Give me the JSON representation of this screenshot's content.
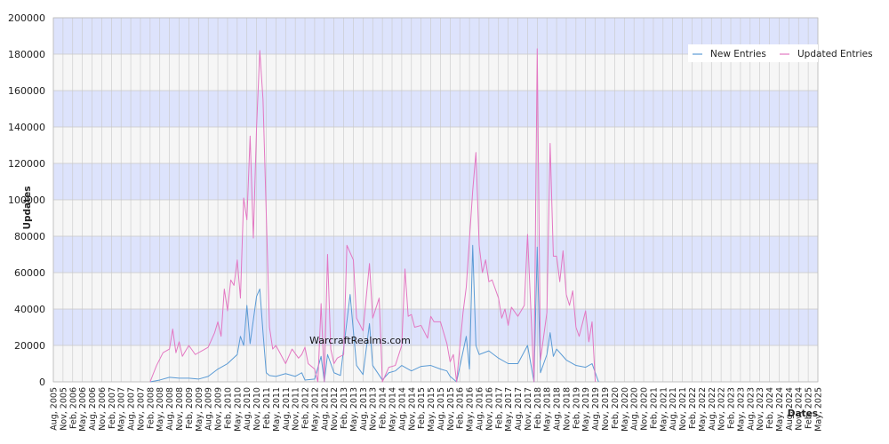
{
  "chart_data": {
    "type": "line",
    "ylabel": "Updates",
    "xlabel": "Dates",
    "watermark": "WarcraftRealms.com",
    "ylim": [
      0,
      200000
    ],
    "y_ticks": [
      "0",
      "20000",
      "40000",
      "60000",
      "80000",
      "100000",
      "120000",
      "140000",
      "160000",
      "180000",
      "200000"
    ],
    "grid": true,
    "legend_position": "top-right",
    "x": [
      "Aug, 2005",
      "Nov, 2005",
      "Feb, 2006",
      "May, 2006",
      "Aug, 2006",
      "Nov, 2006",
      "Feb, 2007",
      "May, 2007",
      "Aug, 2007",
      "Nov, 2007",
      "Feb, 2008",
      "May, 2008",
      "Aug, 2008",
      "Nov, 2008",
      "Feb, 2009",
      "May, 2009",
      "Aug, 2009",
      "Nov, 2009",
      "Feb, 2010",
      "May, 2010",
      "Aug, 2010",
      "Nov, 2010",
      "Feb, 2011",
      "May, 2011",
      "Aug, 2011",
      "Nov, 2011",
      "Feb, 2012",
      "May, 2012",
      "Aug, 2012",
      "Nov, 2012",
      "Feb, 2013",
      "May, 2013",
      "Aug, 2013",
      "Nov, 2013",
      "Feb, 2014",
      "May, 2014",
      "Aug, 2014",
      "Nov, 2014",
      "Feb, 2015",
      "May, 2015",
      "Aug, 2015",
      "Nov, 2015",
      "Feb, 2016",
      "May, 2016",
      "Aug, 2016",
      "Nov, 2016",
      "Feb, 2017",
      "May, 2017",
      "Aug, 2017",
      "Nov, 2017",
      "Feb, 2018",
      "May, 2018",
      "Aug, 2018",
      "Nov, 2018",
      "Feb, 2019",
      "May, 2019",
      "Aug, 2019",
      "Nov, 2019",
      "Feb, 2020",
      "May, 2020",
      "Aug, 2020",
      "Nov, 2020",
      "Feb, 2021",
      "May, 2021",
      "Aug, 2021",
      "Nov, 2021",
      "Feb, 2022",
      "May, 2022",
      "Aug, 2022",
      "Nov, 2022",
      "Feb, 2023",
      "May, 2023",
      "Aug, 2023",
      "Nov, 2023",
      "Feb, 2024",
      "May, 2024",
      "Aug, 2024",
      "Nov, 2024",
      "Feb, 2025",
      "May, 2025"
    ],
    "series": [
      {
        "name": "New Entries",
        "color": "#5b9bd5",
        "points": [
          [
            "Feb, 2008",
            0
          ],
          [
            "May, 2008",
            1000
          ],
          [
            "Aug, 2008",
            2500
          ],
          [
            "Nov, 2008",
            2000
          ],
          [
            "Feb, 2009",
            2000
          ],
          [
            "May, 2009",
            1500
          ],
          [
            "Aug, 2009",
            3000
          ],
          [
            "Nov, 2009",
            7000
          ],
          [
            "Feb, 2010",
            10000
          ],
          [
            "May, 2010",
            15000
          ],
          [
            "Jun, 2010",
            25000
          ],
          [
            "Jul, 2010",
            20000
          ],
          [
            "Aug, 2010",
            42000
          ],
          [
            "Sep, 2010",
            21000
          ],
          [
            "Nov, 2010",
            47000
          ],
          [
            "Dec, 2010",
            51000
          ],
          [
            "Jan, 2011",
            27000
          ],
          [
            "Feb, 2011",
            5000
          ],
          [
            "Mar, 2011",
            3500
          ],
          [
            "May, 2011",
            3000
          ],
          [
            "Aug, 2011",
            4500
          ],
          [
            "Nov, 2011",
            3000
          ],
          [
            "Jan, 2012",
            5000
          ],
          [
            "Feb, 2012",
            1000
          ],
          [
            "May, 2012",
            1500
          ],
          [
            "Jul, 2012",
            14000
          ],
          [
            "Aug, 2012",
            0
          ],
          [
            "Sep, 2012",
            15000
          ],
          [
            "Nov, 2012",
            5000
          ],
          [
            "Jan, 2013",
            3500
          ],
          [
            "Apr, 2013",
            48000
          ],
          [
            "May, 2013",
            28000
          ],
          [
            "Jun, 2013",
            9000
          ],
          [
            "Aug, 2013",
            4000
          ],
          [
            "Oct, 2013",
            32000
          ],
          [
            "Nov, 2013",
            9000
          ],
          [
            "Feb, 2014",
            1000
          ],
          [
            "Apr, 2014",
            5000
          ],
          [
            "Jun, 2014",
            6000
          ],
          [
            "Aug, 2014",
            9000
          ],
          [
            "Oct, 2014",
            7000
          ],
          [
            "Nov, 2014",
            6000
          ],
          [
            "Feb, 2015",
            8500
          ],
          [
            "May, 2015",
            9000
          ],
          [
            "Aug, 2015",
            7000
          ],
          [
            "Oct, 2015",
            6000
          ],
          [
            "Nov, 2015",
            3000
          ],
          [
            "Jan, 2016",
            0
          ],
          [
            "Apr, 2016",
            25000
          ],
          [
            "May, 2016",
            7000
          ],
          [
            "Jun, 2016",
            75000
          ],
          [
            "Jul, 2016",
            20000
          ],
          [
            "Aug, 2016",
            15000
          ],
          [
            "Nov, 2016",
            17000
          ],
          [
            "Feb, 2017",
            13000
          ],
          [
            "May, 2017",
            10000
          ],
          [
            "Aug, 2017",
            10000
          ],
          [
            "Nov, 2017",
            20000
          ],
          [
            "Jan, 2018",
            0
          ],
          [
            "Feb, 2018",
            74000
          ],
          [
            "Mar, 2018",
            5000
          ],
          [
            "May, 2018",
            15000
          ],
          [
            "Jun, 2018",
            27000
          ],
          [
            "Jul, 2018",
            14000
          ],
          [
            "Aug, 2018",
            18000
          ],
          [
            "Nov, 2018",
            12000
          ],
          [
            "Feb, 2019",
            9000
          ],
          [
            "May, 2019",
            8000
          ],
          [
            "Jul, 2019",
            10000
          ],
          [
            "Aug, 2019",
            5000
          ],
          [
            "Sep, 2019",
            0
          ]
        ]
      },
      {
        "name": "Updated Entries",
        "color": "#e377c2",
        "points": [
          [
            "Feb, 2008",
            0
          ],
          [
            "Apr, 2008",
            9000
          ],
          [
            "Jun, 2008",
            16000
          ],
          [
            "Aug, 2008",
            18000
          ],
          [
            "Sep, 2008",
            29000
          ],
          [
            "Oct, 2008",
            16000
          ],
          [
            "Nov, 2008",
            22000
          ],
          [
            "Dec, 2008",
            14000
          ],
          [
            "Feb, 2009",
            20000
          ],
          [
            "Apr, 2009",
            15000
          ],
          [
            "Jun, 2009",
            17000
          ],
          [
            "Aug, 2009",
            19000
          ],
          [
            "Oct, 2009",
            27000
          ],
          [
            "Nov, 2009",
            33000
          ],
          [
            "Dec, 2009",
            25000
          ],
          [
            "Jan, 2010",
            51000
          ],
          [
            "Feb, 2010",
            39000
          ],
          [
            "Mar, 2010",
            56000
          ],
          [
            "Apr, 2010",
            53000
          ],
          [
            "May, 2010",
            67000
          ],
          [
            "Jun, 2010",
            46000
          ],
          [
            "Jul, 2010",
            101000
          ],
          [
            "Aug, 2010",
            89000
          ],
          [
            "Sep, 2010",
            135000
          ],
          [
            "Oct, 2010",
            79000
          ],
          [
            "Nov, 2010",
            140000
          ],
          [
            "Dec, 2010",
            182000
          ],
          [
            "Jan, 2011",
            155000
          ],
          [
            "Mar, 2011",
            30000
          ],
          [
            "Apr, 2011",
            18000
          ],
          [
            "May, 2011",
            20000
          ],
          [
            "Aug, 2011",
            10000
          ],
          [
            "Oct, 2011",
            18000
          ],
          [
            "Dec, 2011",
            13000
          ],
          [
            "Jan, 2012",
            15000
          ],
          [
            "Feb, 2012",
            19000
          ],
          [
            "Mar, 2012",
            10000
          ],
          [
            "May, 2012",
            7000
          ],
          [
            "Jun, 2012",
            0
          ],
          [
            "Jul, 2012",
            43000
          ],
          [
            "Aug, 2012",
            0
          ],
          [
            "Sep, 2012",
            70000
          ],
          [
            "Oct, 2012",
            18000
          ],
          [
            "Nov, 2012",
            10000
          ],
          [
            "Dec, 2012",
            13000
          ],
          [
            "Feb, 2013",
            15000
          ],
          [
            "Mar, 2013",
            75000
          ],
          [
            "May, 2013",
            67000
          ],
          [
            "Jun, 2013",
            35000
          ],
          [
            "Aug, 2013",
            28000
          ],
          [
            "Oct, 2013",
            65000
          ],
          [
            "Nov, 2013",
            35000
          ],
          [
            "Jan, 2014",
            46000
          ],
          [
            "Feb, 2014",
            0
          ],
          [
            "Apr, 2014",
            8000
          ],
          [
            "Jun, 2014",
            9000
          ],
          [
            "Aug, 2014",
            20000
          ],
          [
            "Sep, 2014",
            62000
          ],
          [
            "Oct, 2014",
            36000
          ],
          [
            "Nov, 2014",
            37000
          ],
          [
            "Dec, 2014",
            30000
          ],
          [
            "Feb, 2015",
            31000
          ],
          [
            "Apr, 2015",
            24000
          ],
          [
            "May, 2015",
            36000
          ],
          [
            "Jun, 2015",
            33000
          ],
          [
            "Aug, 2015",
            33000
          ],
          [
            "Oct, 2015",
            21000
          ],
          [
            "Nov, 2015",
            11000
          ],
          [
            "Dec, 2015",
            15000
          ],
          [
            "Jan, 2016",
            0
          ],
          [
            "Mar, 2016",
            38000
          ],
          [
            "Apr, 2016",
            52000
          ],
          [
            "Jun, 2016",
            105000
          ],
          [
            "Jul, 2016",
            126000
          ],
          [
            "Aug, 2016",
            75000
          ],
          [
            "Sep, 2016",
            60000
          ],
          [
            "Oct, 2016",
            67000
          ],
          [
            "Nov, 2016",
            55000
          ],
          [
            "Dec, 2016",
            56000
          ],
          [
            "Feb, 2017",
            46000
          ],
          [
            "Mar, 2017",
            35000
          ],
          [
            "Apr, 2017",
            40000
          ],
          [
            "May, 2017",
            31000
          ],
          [
            "Jun, 2017",
            41000
          ],
          [
            "Aug, 2017",
            36000
          ],
          [
            "Oct, 2017",
            42000
          ],
          [
            "Nov, 2017",
            81000
          ],
          [
            "Jan, 2018",
            0
          ],
          [
            "Feb, 2018",
            183000
          ],
          [
            "Mar, 2018",
            12000
          ],
          [
            "May, 2018",
            38000
          ],
          [
            "Jun, 2018",
            131000
          ],
          [
            "Jul, 2018",
            69000
          ],
          [
            "Aug, 2018",
            69000
          ],
          [
            "Sep, 2018",
            55000
          ],
          [
            "Oct, 2018",
            72000
          ],
          [
            "Nov, 2018",
            48000
          ],
          [
            "Dec, 2018",
            42000
          ],
          [
            "Jan, 2019",
            50000
          ],
          [
            "Feb, 2019",
            30000
          ],
          [
            "Mar, 2019",
            25000
          ],
          [
            "May, 2019",
            39000
          ],
          [
            "Jun, 2019",
            22000
          ],
          [
            "Jul, 2019",
            33000
          ],
          [
            "Aug, 2019",
            0
          ]
        ]
      }
    ]
  },
  "colors": {
    "band_blue": "#dde3fc",
    "band_gray": "#f6f6f6",
    "grid_line": "#c8c8c8"
  }
}
